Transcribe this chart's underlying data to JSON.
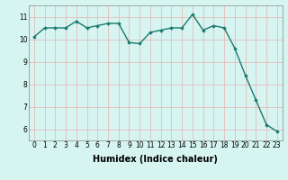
{
  "x": [
    0,
    1,
    2,
    3,
    4,
    5,
    6,
    7,
    8,
    9,
    10,
    11,
    12,
    13,
    14,
    15,
    16,
    17,
    18,
    19,
    20,
    21,
    22,
    23
  ],
  "y": [
    10.1,
    10.5,
    10.5,
    10.5,
    10.8,
    10.5,
    10.6,
    10.7,
    10.7,
    9.85,
    9.8,
    10.3,
    10.4,
    10.5,
    10.5,
    11.1,
    10.4,
    10.6,
    10.5,
    9.6,
    8.4,
    7.3,
    6.2,
    5.9
  ],
  "line_color": "#1a7a6e",
  "marker": "D",
  "marker_size": 1.8,
  "bg_color": "#d6f5f0",
  "grid_color_major": "#e8b0b0",
  "xlabel": "Humidex (Indice chaleur)",
  "xlim": [
    -0.5,
    23.5
  ],
  "ylim": [
    5.5,
    11.5
  ],
  "yticks": [
    6,
    7,
    8,
    9,
    10,
    11
  ],
  "xticks": [
    0,
    1,
    2,
    3,
    4,
    5,
    6,
    7,
    8,
    9,
    10,
    11,
    12,
    13,
    14,
    15,
    16,
    17,
    18,
    19,
    20,
    21,
    22,
    23
  ],
  "tick_fontsize": 5.5,
  "xlabel_fontsize": 7,
  "linewidth": 1.0,
  "spine_color": "#888888"
}
